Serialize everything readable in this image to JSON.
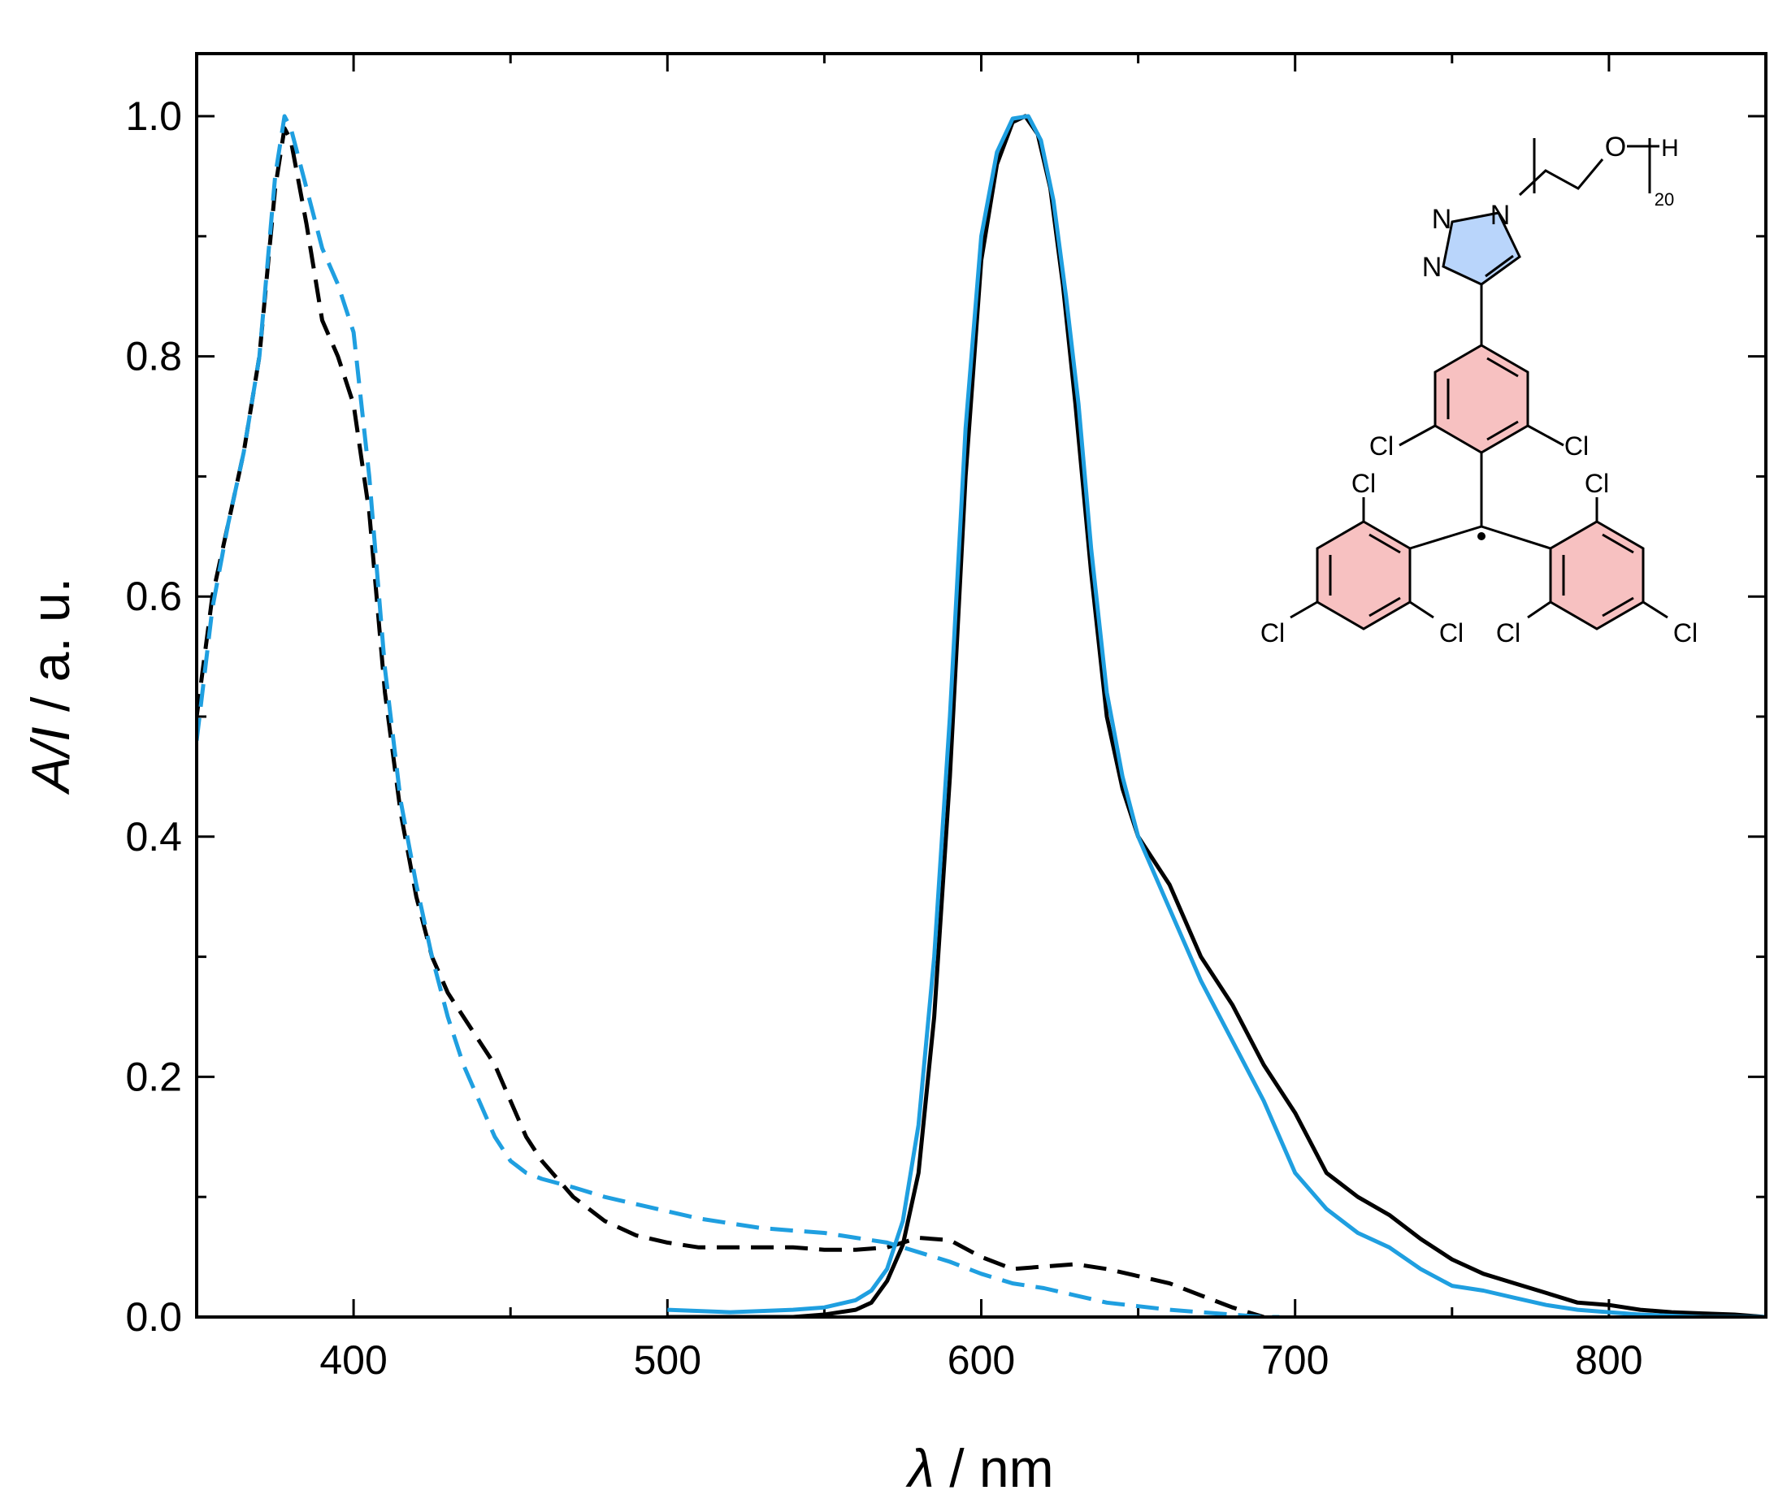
{
  "chart_data": {
    "type": "line",
    "title": "",
    "xlabel_symbol": "λ",
    "xlabel_unit": " / nm",
    "ylabel_symbol": "A/I",
    "ylabel_unit": " / a. u.",
    "xlim": [
      350,
      850
    ],
    "ylim": [
      0,
      1.05
    ],
    "xticks": [
      400,
      500,
      600,
      700,
      800
    ],
    "xtick_labels": [
      "400",
      "500",
      "600",
      "700",
      "800"
    ],
    "yticks": [
      0,
      0.2,
      0.4,
      0.6,
      0.8,
      1.0
    ],
    "ytick_labels": [
      "0.0",
      "0.2",
      "0.4",
      "0.6",
      "0.8",
      "1.0"
    ],
    "grid": false,
    "legend": "none",
    "series": [
      {
        "style": "dashed",
        "color": "#000000",
        "x": [
          350,
          355,
          360,
          365,
          370,
          375,
          378,
          380,
          385,
          390,
          395,
          400,
          405,
          410,
          415,
          420,
          425,
          430,
          435,
          440,
          445,
          450,
          455,
          460,
          470,
          480,
          490,
          500,
          510,
          520,
          530,
          540,
          550,
          560,
          570,
          580,
          590,
          600,
          610,
          620,
          630,
          640,
          650,
          660,
          670,
          680,
          690
        ],
        "y": [
          0.5,
          0.6,
          0.66,
          0.72,
          0.8,
          0.94,
          0.99,
          0.98,
          0.91,
          0.83,
          0.8,
          0.76,
          0.67,
          0.52,
          0.42,
          0.35,
          0.3,
          0.27,
          0.25,
          0.23,
          0.21,
          0.18,
          0.15,
          0.13,
          0.1,
          0.08,
          0.068,
          0.062,
          0.058,
          0.058,
          0.058,
          0.058,
          0.056,
          0.056,
          0.058,
          0.066,
          0.064,
          0.05,
          0.04,
          0.042,
          0.044,
          0.04,
          0.034,
          0.028,
          0.018,
          0.008,
          0.0
        ]
      },
      {
        "style": "dashed",
        "color": "#1f9fe0",
        "x": [
          350,
          355,
          360,
          365,
          370,
          375,
          378,
          380,
          385,
          390,
          395,
          400,
          405,
          410,
          415,
          420,
          425,
          430,
          435,
          440,
          445,
          450,
          455,
          460,
          470,
          480,
          490,
          500,
          510,
          520,
          530,
          540,
          550,
          560,
          570,
          580,
          590,
          600,
          610,
          620,
          630,
          640,
          650,
          660,
          670,
          680,
          690,
          695
        ],
        "y": [
          0.48,
          0.59,
          0.66,
          0.72,
          0.8,
          0.95,
          1.0,
          0.99,
          0.94,
          0.89,
          0.86,
          0.82,
          0.7,
          0.54,
          0.43,
          0.36,
          0.3,
          0.25,
          0.21,
          0.18,
          0.15,
          0.13,
          0.12,
          0.115,
          0.108,
          0.1,
          0.094,
          0.088,
          0.082,
          0.078,
          0.074,
          0.072,
          0.07,
          0.066,
          0.062,
          0.054,
          0.046,
          0.036,
          0.028,
          0.024,
          0.018,
          0.012,
          0.009,
          0.006,
          0.004,
          0.002,
          0.0,
          0.0
        ]
      },
      {
        "style": "solid",
        "color": "#000000",
        "x": [
          500,
          520,
          540,
          550,
          560,
          565,
          570,
          575,
          580,
          585,
          590,
          595,
          600,
          605,
          610,
          614,
          618,
          622,
          626,
          630,
          635,
          640,
          645,
          650,
          655,
          660,
          665,
          670,
          680,
          690,
          700,
          710,
          720,
          730,
          740,
          750,
          760,
          770,
          780,
          790,
          800,
          810,
          820,
          830,
          840,
          850
        ],
        "y": [
          0.0,
          0.0,
          0.0,
          0.002,
          0.006,
          0.012,
          0.03,
          0.06,
          0.12,
          0.25,
          0.45,
          0.7,
          0.88,
          0.96,
          0.995,
          1.0,
          0.985,
          0.94,
          0.86,
          0.76,
          0.62,
          0.5,
          0.44,
          0.4,
          0.38,
          0.36,
          0.33,
          0.3,
          0.26,
          0.21,
          0.17,
          0.12,
          0.1,
          0.085,
          0.065,
          0.048,
          0.036,
          0.028,
          0.02,
          0.012,
          0.01,
          0.006,
          0.004,
          0.003,
          0.002,
          0.0
        ]
      },
      {
        "style": "solid",
        "color": "#1f9fe0",
        "x": [
          500,
          520,
          540,
          550,
          560,
          565,
          570,
          575,
          580,
          585,
          590,
          595,
          600,
          605,
          610,
          615,
          619,
          623,
          627,
          631,
          635,
          640,
          645,
          650,
          655,
          660,
          665,
          670,
          680,
          690,
          700,
          710,
          720,
          730,
          740,
          750,
          760,
          770,
          780,
          790,
          800,
          810,
          820,
          830,
          840,
          850
        ],
        "y": [
          0.006,
          0.004,
          0.006,
          0.008,
          0.014,
          0.022,
          0.04,
          0.08,
          0.16,
          0.3,
          0.5,
          0.74,
          0.9,
          0.97,
          0.998,
          1.0,
          0.98,
          0.93,
          0.85,
          0.76,
          0.64,
          0.52,
          0.45,
          0.4,
          0.37,
          0.34,
          0.31,
          0.28,
          0.23,
          0.18,
          0.12,
          0.09,
          0.07,
          0.058,
          0.04,
          0.026,
          0.022,
          0.016,
          0.01,
          0.006,
          0.004,
          0.002,
          0.001,
          0.0,
          0.0,
          0.0
        ]
      }
    ]
  },
  "molecule": {
    "triazole_atoms": [
      "N",
      "N",
      "N"
    ],
    "oxygen_label": "O",
    "hydrogen_label": "H",
    "repeat_count": "20",
    "chlorine_label": "Cl",
    "triazole_color": "#b9d5fb",
    "ring_color": "#f7c1c1"
  }
}
